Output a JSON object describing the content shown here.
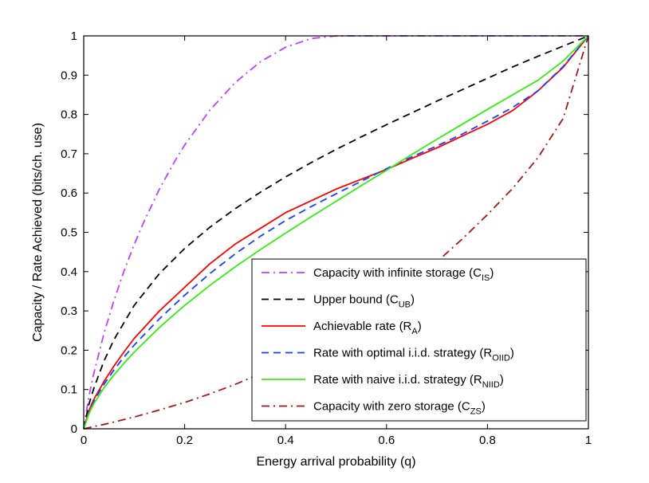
{
  "chart_data": {
    "type": "line",
    "title": "",
    "xlabel": "Energy arrival probability (q)",
    "ylabel": "Capacity / Rate Achieved (bits/ch. use)",
    "xlim": [
      0,
      1
    ],
    "ylim": [
      0,
      1
    ],
    "xticks": [
      0,
      0.2,
      0.4,
      0.6,
      0.8,
      1
    ],
    "xtick_labels": [
      "0",
      "0.2",
      "0.4",
      "0.6",
      "0.8",
      "1"
    ],
    "yticks": [
      0,
      0.1,
      0.2,
      0.3,
      0.4,
      0.5,
      0.6,
      0.7,
      0.8,
      0.9,
      1
    ],
    "ytick_labels": [
      "0",
      "0.1",
      "0.2",
      "0.3",
      "0.4",
      "0.5",
      "0.6",
      "0.7",
      "0.8",
      "0.9",
      "1"
    ],
    "grid": false,
    "legend_position": "bottom-right",
    "series": [
      {
        "name": "Capacity with infinite storage (C_IS)",
        "legend_main": "Capacity with infinite storage (C",
        "legend_sub": "IS",
        "legend_tail": ")",
        "color": "#bf40ff",
        "dash": "dashdot",
        "x": [
          0,
          0.01,
          0.02,
          0.04,
          0.06,
          0.08,
          0.1,
          0.12,
          0.15,
          0.18,
          0.2,
          0.25,
          0.3,
          0.35,
          0.4,
          0.45,
          0.5,
          0.6,
          0.7,
          0.8,
          0.9,
          1.0
        ],
        "y": [
          0,
          0.081,
          0.141,
          0.242,
          0.327,
          0.402,
          0.469,
          0.529,
          0.61,
          0.68,
          0.722,
          0.811,
          0.881,
          0.934,
          0.971,
          0.993,
          1.0,
          1.0,
          1.0,
          1.0,
          1.0,
          1.0
        ]
      },
      {
        "name": "Upper bound (C_UB)",
        "legend_main": "Upper bound (C",
        "legend_sub": "UB",
        "legend_tail": ")",
        "color": "#000000",
        "dash": "dashed",
        "x": [
          0,
          0.01,
          0.02,
          0.04,
          0.06,
          0.1,
          0.15,
          0.2,
          0.25,
          0.3,
          0.35,
          0.4,
          0.45,
          0.5,
          0.55,
          0.6,
          0.65,
          0.7,
          0.75,
          0.8,
          0.85,
          0.9,
          0.95,
          1.0
        ],
        "y": [
          0,
          0.061,
          0.103,
          0.172,
          0.227,
          0.314,
          0.395,
          0.459,
          0.513,
          0.56,
          0.602,
          0.641,
          0.677,
          0.711,
          0.743,
          0.774,
          0.804,
          0.834,
          0.863,
          0.892,
          0.921,
          0.948,
          0.974,
          1.0
        ]
      },
      {
        "name": "Achievable rate (R_A)",
        "legend_main": "Achievable rate (R",
        "legend_sub": "A",
        "legend_tail": ")",
        "color": "#ff0000",
        "dash": "solid",
        "x": [
          0,
          0.01,
          0.02,
          0.04,
          0.06,
          0.08,
          0.1,
          0.15,
          0.2,
          0.25,
          0.3,
          0.35,
          0.4,
          0.45,
          0.5,
          0.55,
          0.6,
          0.65,
          0.7,
          0.75,
          0.8,
          0.85,
          0.9,
          0.95,
          1.0
        ],
        "y": [
          0,
          0.045,
          0.075,
          0.12,
          0.16,
          0.196,
          0.23,
          0.3,
          0.36,
          0.42,
          0.47,
          0.51,
          0.55,
          0.58,
          0.61,
          0.635,
          0.66,
          0.688,
          0.715,
          0.745,
          0.775,
          0.81,
          0.86,
          0.92,
          1.0
        ]
      },
      {
        "name": "Rate with optimal i.i.d. strategy (R_OIID)",
        "legend_main": "Rate with optimal i.i.d. strategy (R",
        "legend_sub": "OIID",
        "legend_tail": ")",
        "color": "#1a3fff",
        "dash": "dashed",
        "x": [
          0,
          0.01,
          0.02,
          0.04,
          0.06,
          0.08,
          0.1,
          0.15,
          0.2,
          0.25,
          0.3,
          0.35,
          0.4,
          0.45,
          0.5,
          0.55,
          0.6,
          0.65,
          0.7,
          0.75,
          0.8,
          0.85,
          0.9,
          0.95,
          1.0
        ],
        "y": [
          0,
          0.04,
          0.07,
          0.113,
          0.15,
          0.183,
          0.213,
          0.28,
          0.34,
          0.395,
          0.445,
          0.49,
          0.53,
          0.565,
          0.598,
          0.63,
          0.662,
          0.692,
          0.72,
          0.75,
          0.783,
          0.818,
          0.86,
          0.922,
          1.0
        ]
      },
      {
        "name": "Rate with naive i.i.d. strategy (R_NIID)",
        "legend_main": "Rate with naive i.i.d. strategy (R",
        "legend_sub": "NIID",
        "legend_tail": ")",
        "color": "#33ee11",
        "dash": "solid",
        "x": [
          0,
          0.01,
          0.02,
          0.04,
          0.06,
          0.08,
          0.1,
          0.15,
          0.2,
          0.25,
          0.3,
          0.35,
          0.4,
          0.45,
          0.5,
          0.55,
          0.6,
          0.65,
          0.7,
          0.75,
          0.8,
          0.85,
          0.9,
          0.95,
          1.0
        ],
        "y": [
          0,
          0.037,
          0.064,
          0.104,
          0.137,
          0.167,
          0.195,
          0.258,
          0.314,
          0.365,
          0.412,
          0.456,
          0.498,
          0.539,
          0.579,
          0.619,
          0.658,
          0.698,
          0.737,
          0.775,
          0.813,
          0.85,
          0.887,
          0.936,
          1.0
        ]
      },
      {
        "name": "Capacity with zero storage (C_ZS)",
        "legend_main": "Capacity with zero storage (C",
        "legend_sub": "ZS",
        "legend_tail": ")",
        "color": "#a01a1a",
        "dash": "dashdot",
        "x": [
          0,
          0.05,
          0.1,
          0.15,
          0.2,
          0.25,
          0.3,
          0.35,
          0.4,
          0.45,
          0.5,
          0.55,
          0.6,
          0.65,
          0.7,
          0.75,
          0.8,
          0.85,
          0.9,
          0.95,
          1.0
        ],
        "y": [
          0,
          0.014,
          0.03,
          0.048,
          0.067,
          0.089,
          0.113,
          0.14,
          0.17,
          0.203,
          0.24,
          0.28,
          0.324,
          0.373,
          0.425,
          0.483,
          0.545,
          0.612,
          0.69,
          0.79,
          1.0
        ]
      }
    ]
  }
}
